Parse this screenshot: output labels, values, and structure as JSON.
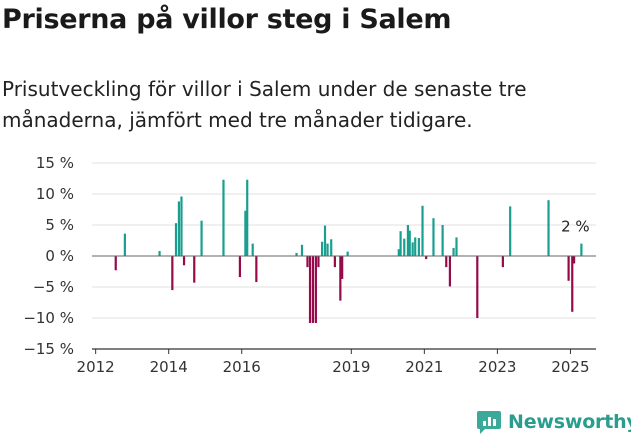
{
  "title": "Priserna på villor steg i Salem",
  "subtitle": "Prisutveckling för villor i Salem under de senaste tre månaderna, jämfört med tre månader tidigare.",
  "brand": {
    "name": "Newsworthy"
  },
  "colors": {
    "positive": "#1a9e8f",
    "negative": "#960a4b",
    "axis": "#333333",
    "grid": "#e0e0e0"
  },
  "chart_data": {
    "type": "bar",
    "title": "",
    "xlabel": "",
    "ylabel": "",
    "ylim": [
      -15,
      15
    ],
    "yticks": [
      15,
      10,
      5,
      0,
      -5,
      -10,
      -15
    ],
    "ytick_labels": [
      "15 %",
      "10 %",
      "5 %",
      "0 %",
      "−5 %",
      "−10 %",
      "−15 %"
    ],
    "xlim": [
      2011.9,
      2025.7
    ],
    "xticks": [
      2012,
      2014,
      2016,
      2019,
      2021,
      2023,
      2025
    ],
    "annotation": {
      "text": "2 %",
      "x": 2025.3,
      "y": 2
    },
    "x": [
      2012.55,
      2012.8,
      2013.75,
      2014.1,
      2014.2,
      2014.28,
      2014.35,
      2014.42,
      2014.7,
      2014.9,
      2015.5,
      2015.95,
      2016.1,
      2016.15,
      2016.3,
      2016.4,
      2017.5,
      2017.65,
      2017.8,
      2017.87,
      2017.95,
      2018.03,
      2018.1,
      2018.2,
      2018.28,
      2018.35,
      2018.45,
      2018.55,
      2018.7,
      2018.75,
      2018.9,
      2020.3,
      2020.35,
      2020.45,
      2020.55,
      2020.6,
      2020.68,
      2020.75,
      2020.85,
      2020.95,
      2021.05,
      2021.25,
      2021.5,
      2021.6,
      2021.7,
      2021.8,
      2021.88,
      2022.45,
      2023.15,
      2023.35,
      2024.4,
      2024.95,
      2025.05,
      2025.1,
      2025.3
    ],
    "values": [
      -2.3,
      3.6,
      0.8,
      -5.5,
      5.3,
      8.8,
      9.6,
      -1.5,
      -4.3,
      5.7,
      12.3,
      -3.4,
      7.3,
      12.3,
      2.0,
      -4.2,
      0.5,
      1.8,
      -1.8,
      -10.8,
      -10.8,
      -10.8,
      -1.8,
      2.3,
      4.9,
      2.0,
      2.7,
      -1.8,
      -7.2,
      -3.7,
      0.7,
      1.1,
      4.0,
      2.8,
      5.0,
      4.1,
      2.2,
      3.0,
      2.9,
      8.1,
      -0.5,
      6.1,
      5.0,
      -1.8,
      -4.9,
      1.3,
      3.0,
      -10.0,
      -1.8,
      8.0,
      9.0,
      -4.0,
      -9.0,
      -1.2,
      2.0
    ]
  }
}
